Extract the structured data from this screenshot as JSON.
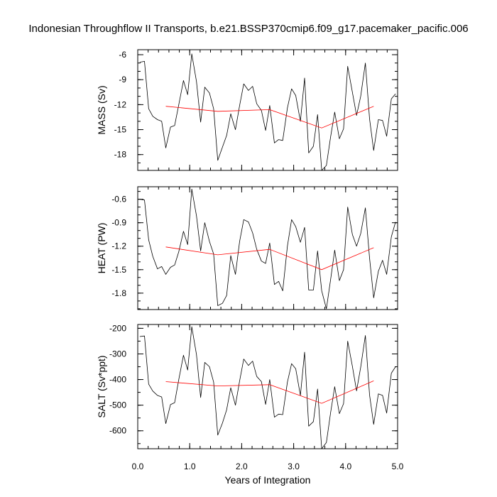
{
  "title": "Indonesian Throughflow II Transports, b.e21.BSSP370cmip6.f09_g17.pacemaker_pacific.006",
  "colors": {
    "raw": "#000000",
    "smooth": "#ff0000",
    "frame": "#000000"
  },
  "chart_data": {
    "type": "line",
    "xlabel": "Years of Integration",
    "xlim": [
      0,
      5
    ],
    "xticks": [
      0,
      1,
      2,
      3,
      4,
      5
    ],
    "xtick_labels": [
      "0.0",
      "1.0",
      "2.0",
      "3.0",
      "4.0",
      "5.0"
    ],
    "x_minor_step": 0.2,
    "x_raw": [
      0.04,
      0.13,
      0.21,
      0.29,
      0.38,
      0.46,
      0.54,
      0.63,
      0.71,
      0.79,
      0.88,
      0.96,
      1.04,
      1.13,
      1.21,
      1.29,
      1.38,
      1.46,
      1.54,
      1.63,
      1.71,
      1.79,
      1.88,
      1.96,
      2.04,
      2.13,
      2.21,
      2.29,
      2.38,
      2.46,
      2.54,
      2.63,
      2.71,
      2.79,
      2.88,
      2.96,
      3.04,
      3.13,
      3.21,
      3.29,
      3.38,
      3.46,
      3.54,
      3.63,
      3.71,
      3.79,
      3.88,
      3.96,
      4.04,
      4.13,
      4.21,
      4.29,
      4.38,
      4.46,
      4.54,
      4.63,
      4.71,
      4.79,
      4.88,
      4.96
    ],
    "x_smooth": [
      0.54,
      1.54,
      2.54,
      3.54,
      4.54
    ],
    "panels": [
      {
        "name": "mass",
        "ylabel": "MASS (Sv)",
        "ylim": [
          -19.9,
          -5.4
        ],
        "yticks": [
          -6,
          -9,
          -12,
          -15,
          -18
        ],
        "ytick_labels": [
          "-6",
          "-9",
          "-12",
          "-15",
          "-18"
        ],
        "y_minor_step": 1,
        "raw": [
          -6.9,
          -6.8,
          -12.5,
          -13.4,
          -13.8,
          -14.0,
          -17.2,
          -14.7,
          -14.5,
          -12.0,
          -9.1,
          -10.8,
          -5.9,
          -9.2,
          -14.1,
          -9.9,
          -10.6,
          -12.5,
          -18.7,
          -17.1,
          -15.7,
          -13.1,
          -15.0,
          -12.1,
          -9.5,
          -10.3,
          -9.8,
          -11.9,
          -12.7,
          -15.1,
          -12.1,
          -16.6,
          -16.2,
          -16.3,
          -12.4,
          -10.1,
          -10.9,
          -14.0,
          -8.8,
          -17.8,
          -17.0,
          -13.2,
          -19.9,
          -19.3,
          -15.9,
          -12.9,
          -16.1,
          -14.9,
          -7.4,
          -10.5,
          -13.3,
          -11.0,
          -7.0,
          -13.7,
          -17.5,
          -13.8,
          -13.9,
          -15.8,
          -11.3,
          -10.7
        ],
        "smooth": [
          -12.2,
          -12.8,
          -12.6,
          -14.8,
          -12.2
        ]
      },
      {
        "name": "heat",
        "ylabel": "HEAT (PW)",
        "ylim": [
          -2.01,
          -0.44
        ],
        "yticks": [
          -0.6,
          -0.9,
          -1.2,
          -1.5,
          -1.8
        ],
        "ytick_labels": [
          "-0.6",
          "-0.9",
          "-1.2",
          "-1.5",
          "-1.8"
        ],
        "y_minor_step": 0.1,
        "raw": [
          -0.6,
          -0.61,
          -1.12,
          -1.33,
          -1.49,
          -1.46,
          -1.56,
          -1.47,
          -1.44,
          -1.27,
          -1.01,
          -1.18,
          -0.47,
          -0.81,
          -1.26,
          -0.9,
          -1.14,
          -1.3,
          -1.96,
          -1.93,
          -1.83,
          -1.32,
          -1.56,
          -1.14,
          -0.86,
          -0.89,
          -1.03,
          -1.24,
          -1.39,
          -1.42,
          -1.16,
          -1.69,
          -1.65,
          -1.77,
          -1.2,
          -0.86,
          -0.95,
          -1.15,
          -0.96,
          -1.76,
          -1.76,
          -1.26,
          -1.77,
          -2.0,
          -1.63,
          -1.25,
          -1.64,
          -1.5,
          -0.7,
          -1.05,
          -1.2,
          -1.04,
          -0.71,
          -1.35,
          -1.86,
          -1.52,
          -1.38,
          -1.56,
          -1.08,
          -0.89
        ],
        "smooth": [
          -1.21,
          -1.31,
          -1.24,
          -1.5,
          -1.22
        ]
      },
      {
        "name": "salt",
        "ylabel": "SALT (Sv*ppt)",
        "ylim": [
          -670,
          -185
        ],
        "yticks": [
          -200,
          -300,
          -400,
          -500,
          -600
        ],
        "ytick_labels": [
          "-200",
          "-300",
          "-400",
          "-500",
          "-600"
        ],
        "y_minor_step": 50,
        "raw": [
          -232,
          -230,
          -418,
          -445,
          -462,
          -468,
          -572,
          -498,
          -490,
          -400,
          -305,
          -363,
          -194,
          -302,
          -470,
          -333,
          -350,
          -410,
          -617,
          -570,
          -518,
          -432,
          -500,
          -405,
          -320,
          -345,
          -328,
          -388,
          -408,
          -497,
          -400,
          -547,
          -535,
          -537,
          -410,
          -338,
          -358,
          -462,
          -293,
          -582,
          -564,
          -437,
          -670,
          -646,
          -530,
          -428,
          -533,
          -494,
          -250,
          -348,
          -444,
          -352,
          -228,
          -460,
          -575,
          -456,
          -462,
          -531,
          -375,
          -350
        ],
        "smooth": [
          -408,
          -425,
          -420,
          -493,
          -405
        ]
      }
    ]
  }
}
